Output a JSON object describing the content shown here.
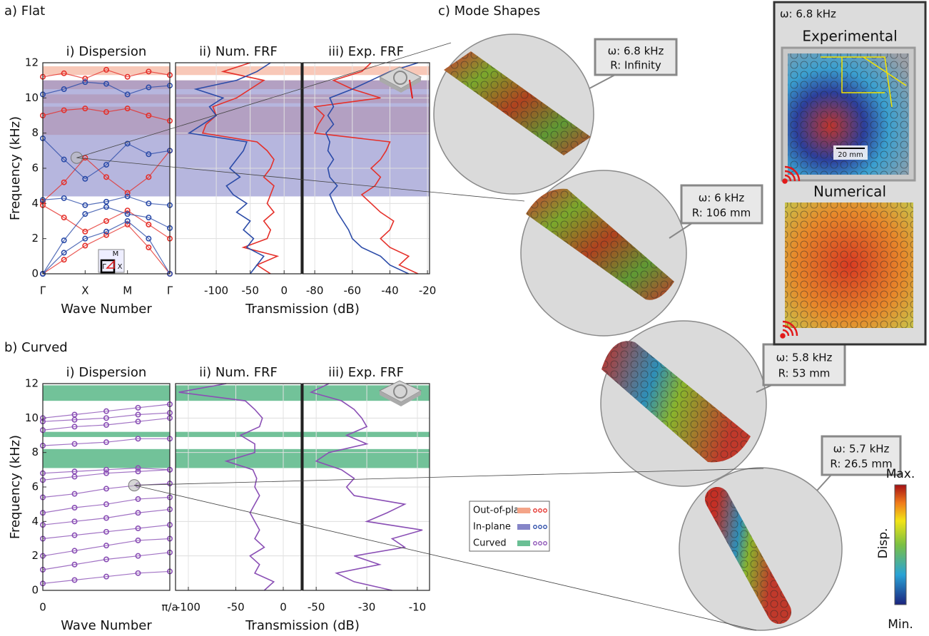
{
  "panels": {
    "flat": "a) Flat",
    "curved": "b) Curved"
  },
  "chart_data": [
    {
      "type": "scatter",
      "title": "i) Dispersion",
      "ylabel": "Frequency (kHz)",
      "xlabel": "Wave Number",
      "x": [
        0,
        0.5,
        1,
        1.5,
        2,
        2.5,
        3
      ],
      "xlim": [
        0,
        3
      ],
      "xticks": [
        {
          "value": 0,
          "label": "Γ"
        },
        {
          "value": 1,
          "label": "X"
        },
        {
          "value": 2,
          "label": "M"
        },
        {
          "value": 3,
          "label": "Γ"
        }
      ],
      "ylim": [
        0,
        12
      ],
      "yticks": [
        0,
        2,
        4,
        6,
        8,
        10,
        12
      ],
      "grid": false,
      "inset_labels": [
        "M",
        "Γ",
        "X"
      ],
      "highlight": [
        0.8,
        6.6
      ],
      "series": [
        {
          "color": "#e5302a",
          "values": [
            0,
            0.8,
            1.6,
            2.2,
            2.8,
            1.5,
            0
          ]
        },
        {
          "color": "#e5302a",
          "values": [
            3.9,
            3.2,
            2.4,
            3.0,
            3.6,
            2.8,
            2.0
          ]
        },
        {
          "color": "#e5302a",
          "values": [
            4.1,
            5.2,
            6.6,
            5.5,
            4.6,
            5.5,
            7.0
          ]
        },
        {
          "color": "#e5302a",
          "values": [
            9.0,
            9.3,
            9.4,
            9.2,
            9.4,
            9.0,
            8.7
          ]
        },
        {
          "color": "#e5302a",
          "values": [
            11.2,
            11.4,
            11.1,
            11.6,
            11.2,
            11.5,
            11.3
          ]
        },
        {
          "color": "#2b4ba8",
          "values": [
            0,
            1.2,
            2.0,
            2.4,
            3.0,
            2.0,
            0
          ]
        },
        {
          "color": "#2b4ba8",
          "values": [
            0,
            1.9,
            3.4,
            3.8,
            3.4,
            3.2,
            2.6
          ]
        },
        {
          "color": "#2b4ba8",
          "values": [
            4.2,
            4.3,
            3.9,
            4.1,
            4.4,
            4.0,
            3.9
          ]
        },
        {
          "color": "#2b4ba8",
          "values": [
            7.7,
            6.5,
            5.4,
            6.2,
            7.4,
            6.8,
            7.0
          ]
        },
        {
          "color": "#2b4ba8",
          "values": [
            10.2,
            10.5,
            10.9,
            10.8,
            10.2,
            10.6,
            10.7
          ]
        }
      ]
    },
    {
      "type": "line",
      "horizontal": true,
      "title": "ii) Num. FRF",
      "ylabel": "Transmission (dB)",
      "x": [
        0,
        0.5,
        1,
        1.5,
        2,
        2.5,
        3,
        3.5,
        4,
        4.5,
        5,
        5.5,
        6,
        6.5,
        7,
        7.5,
        8,
        8.5,
        9,
        9.5,
        10,
        10.5,
        11,
        11.5,
        12
      ],
      "xlim": [
        0,
        12
      ],
      "ylim": [
        -160,
        25
      ],
      "yticks": [
        -100,
        -50,
        0
      ],
      "grid": true,
      "series": [
        {
          "color": "#e5302a",
          "values": [
            -20,
            -40,
            -10,
            -60,
            -25,
            -20,
            -30,
            -15,
            -25,
            -20,
            -15,
            -30,
            -20,
            -15,
            -25,
            -40,
            -120,
            -115,
            -100,
            -105,
            -70,
            -50,
            -30,
            -90,
            -50
          ]
        },
        {
          "color": "#2b4ba8",
          "values": [
            -50,
            -40,
            -30,
            -55,
            -45,
            -60,
            -50,
            -70,
            -55,
            -75,
            -85,
            -65,
            -80,
            -70,
            -60,
            -55,
            -140,
            -120,
            -100,
            -110,
            -90,
            -130,
            -70,
            -40,
            -20
          ]
        }
      ]
    },
    {
      "type": "line",
      "horizontal": true,
      "title": "iii) Exp. FRF",
      "x": [
        0,
        0.5,
        1,
        1.5,
        2,
        2.5,
        3,
        3.5,
        4,
        4.5,
        5,
        5.5,
        6,
        6.5,
        7,
        7.5,
        8,
        8.5,
        9,
        9.5,
        10,
        10.5,
        11,
        11.5,
        12
      ],
      "xlim": [
        0,
        12
      ],
      "ylim": [
        -86.5,
        -18.9
      ],
      "yticks": [
        -80,
        -60,
        -40,
        -20
      ],
      "grid": true,
      "series": [
        {
          "color": "#e5302a",
          "values": [
            -25,
            -35,
            -30,
            -40,
            -45,
            -40,
            -38,
            -45,
            -50,
            -55,
            -48,
            -45,
            -50,
            -45,
            -42,
            -40,
            -80,
            -78,
            -75,
            -80,
            -45,
            -60,
            -70,
            -55,
            -50
          ]
        },
        {
          "color": "#2b4ba8",
          "values": [
            -30,
            -40,
            -45,
            -55,
            -60,
            -62,
            -65,
            -68,
            -70,
            -72,
            -68,
            -72,
            -73,
            -70,
            -73,
            -72,
            -74,
            -70,
            -73,
            -70,
            -72,
            -60,
            -50,
            -40,
            -25
          ]
        }
      ]
    },
    {
      "type": "scatter",
      "title": "i) Dispersion",
      "ylabel": "Frequency (kHz)",
      "xlabel": "Wave Number",
      "x": [
        0,
        0.25,
        0.5,
        0.75,
        1
      ],
      "xlim": [
        0,
        1
      ],
      "xticks": [
        0,
        {
          "value": 1,
          "label": "π/a"
        }
      ],
      "ylim": [
        0,
        12
      ],
      "yticks": [
        0,
        2,
        4,
        6,
        8,
        10,
        12
      ],
      "grid": false,
      "highlight": [
        0.72,
        6.1
      ],
      "series": [
        {
          "color": "#8a4fb5",
          "values": [
            0.4,
            0.6,
            0.8,
            1.0,
            1.1
          ]
        },
        {
          "color": "#8a4fb5",
          "values": [
            1.2,
            1.5,
            1.8,
            2.0,
            2.2
          ]
        },
        {
          "color": "#8a4fb5",
          "values": [
            2.0,
            2.3,
            2.6,
            2.9,
            3.0
          ]
        },
        {
          "color": "#8a4fb5",
          "values": [
            3.0,
            3.2,
            3.4,
            3.6,
            3.8
          ]
        },
        {
          "color": "#8a4fb5",
          "values": [
            3.8,
            4.0,
            4.2,
            4.5,
            4.7
          ]
        },
        {
          "color": "#8a4fb5",
          "values": [
            4.5,
            4.8,
            5.0,
            5.3,
            5.4
          ]
        },
        {
          "color": "#8a4fb5",
          "values": [
            5.4,
            5.6,
            5.9,
            6.1,
            6.2
          ]
        },
        {
          "color": "#8a4fb5",
          "values": [
            6.4,
            6.6,
            6.8,
            6.9,
            7.0
          ]
        },
        {
          "color": "#8a4fb5",
          "values": [
            6.8,
            6.9,
            7.0,
            7.1,
            7.0
          ]
        },
        {
          "color": "#8a4fb5",
          "values": [
            8.4,
            8.5,
            8.6,
            8.8,
            8.8
          ]
        },
        {
          "color": "#8a4fb5",
          "values": [
            9.3,
            9.5,
            9.6,
            9.8,
            10.0
          ]
        },
        {
          "color": "#8a4fb5",
          "values": [
            9.8,
            9.9,
            10.0,
            10.2,
            10.3
          ]
        },
        {
          "color": "#8a4fb5",
          "values": [
            10.0,
            10.2,
            10.4,
            10.6,
            10.8
          ]
        }
      ]
    },
    {
      "type": "line",
      "horizontal": true,
      "title": "ii) Num. FRF",
      "ylabel": "Transmission (dB)",
      "x": [
        0,
        0.5,
        1,
        1.5,
        2,
        2.5,
        3,
        3.5,
        4,
        4.5,
        5,
        5.5,
        6,
        6.5,
        7,
        7.5,
        8,
        8.5,
        9,
        9.5,
        10,
        10.5,
        11,
        11.5,
        12
      ],
      "xlim": [
        0,
        12
      ],
      "ylim": [
        -113.5,
        18.8
      ],
      "yticks": [
        -100,
        -50,
        0
      ],
      "grid": true,
      "series": [
        {
          "color": "#8a4fb5",
          "values": [
            -20,
            -10,
            -30,
            -25,
            -35,
            -20,
            -30,
            -25,
            -30,
            -35,
            -30,
            -25,
            -30,
            -28,
            -32,
            -60,
            -30,
            -30,
            -45,
            -25,
            -22,
            -30,
            -40,
            -110,
            -60
          ]
        }
      ]
    },
    {
      "type": "line",
      "horizontal": true,
      "title": "iii) Exp. FRF",
      "x": [
        0,
        0.5,
        1,
        1.5,
        2,
        2.5,
        3,
        3.5,
        4,
        4.5,
        5,
        5.5,
        6,
        6.5,
        7,
        7.5,
        8,
        8.5,
        9,
        9.5,
        10,
        10.5,
        11,
        11.5,
        12
      ],
      "xlim": [
        0,
        12
      ],
      "ylim": [
        -55.4,
        -5.2
      ],
      "yticks": [
        -50,
        -30,
        -10
      ],
      "grid": true,
      "series": [
        {
          "color": "#8a4fb5",
          "values": [
            -20,
            -35,
            -42,
            -25,
            -35,
            -15,
            -20,
            -8,
            -30,
            -22,
            -15,
            -35,
            -38,
            -35,
            -40,
            -50,
            -45,
            -30,
            -38,
            -30,
            -32,
            -35,
            -40,
            -52,
            -45
          ]
        }
      ]
    }
  ],
  "legend": {
    "items": [
      {
        "name": "Out-of-plane",
        "band_color": "#f4a488",
        "marker_color": "#e5302a",
        "ranges": [
          [
            7.9,
            9.5
          ],
          [
            9.7,
            10.2
          ],
          [
            10.5,
            11.0
          ],
          [
            11.3,
            11.8
          ]
        ]
      },
      {
        "name": "In-plane",
        "band_color": "#8585c8",
        "marker_color": "#2b4ba8",
        "ranges": [
          [
            4.4,
            11.0
          ]
        ]
      },
      {
        "name": "Curved",
        "band_color": "#6abf94",
        "marker_color": "#8a4fb5",
        "ranges": [
          [
            7.1,
            8.2
          ],
          [
            8.9,
            9.2
          ],
          [
            11.0,
            11.9
          ]
        ]
      }
    ]
  },
  "mode_shapes": {
    "title": "c) Mode Shapes",
    "callouts": [
      {
        "frequency": "ω: 6.8 kHz",
        "radius": "R: Infinity"
      },
      {
        "frequency": "ω: 6 kHz",
        "radius": "R: 106 mm"
      },
      {
        "frequency": "ω: 5.8 kHz",
        "radius": "R: 53 mm"
      },
      {
        "frequency": "ω: 5.7 kHz",
        "radius": "R: 26.5 mm"
      }
    ]
  },
  "measurement": {
    "frequency": "ω: 6.8 kHz",
    "experimental": "Experimental",
    "scale": "20 mm",
    "numerical": "Numerical"
  },
  "colorbar": {
    "max": "Max.",
    "label": "Disp.",
    "min": "Min."
  }
}
